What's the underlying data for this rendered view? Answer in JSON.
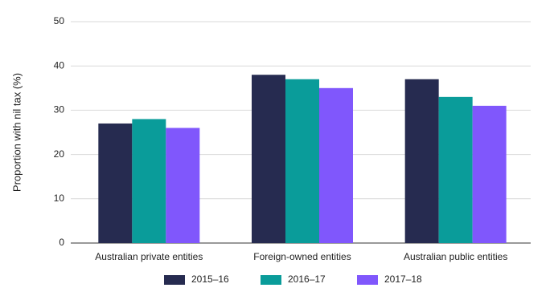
{
  "chart_data": {
    "type": "bar",
    "y_label": "Proportion with nil tax (%)",
    "categories": [
      "Australian private entities",
      "Foreign-owned entities",
      "Australian public entities"
    ],
    "series": [
      {
        "name": "2015–16",
        "color": "#262b50",
        "values": [
          27,
          38,
          37
        ]
      },
      {
        "name": "2016–17",
        "color": "#0a9c9a",
        "values": [
          28,
          37,
          33
        ]
      },
      {
        "name": "2017–18",
        "color": "#8057fc",
        "values": [
          26,
          35,
          31
        ]
      }
    ],
    "ylim": [
      0,
      50
    ],
    "yticks": [
      0,
      10,
      20,
      30,
      40,
      50
    ],
    "grid": true,
    "legend": "bottom"
  }
}
